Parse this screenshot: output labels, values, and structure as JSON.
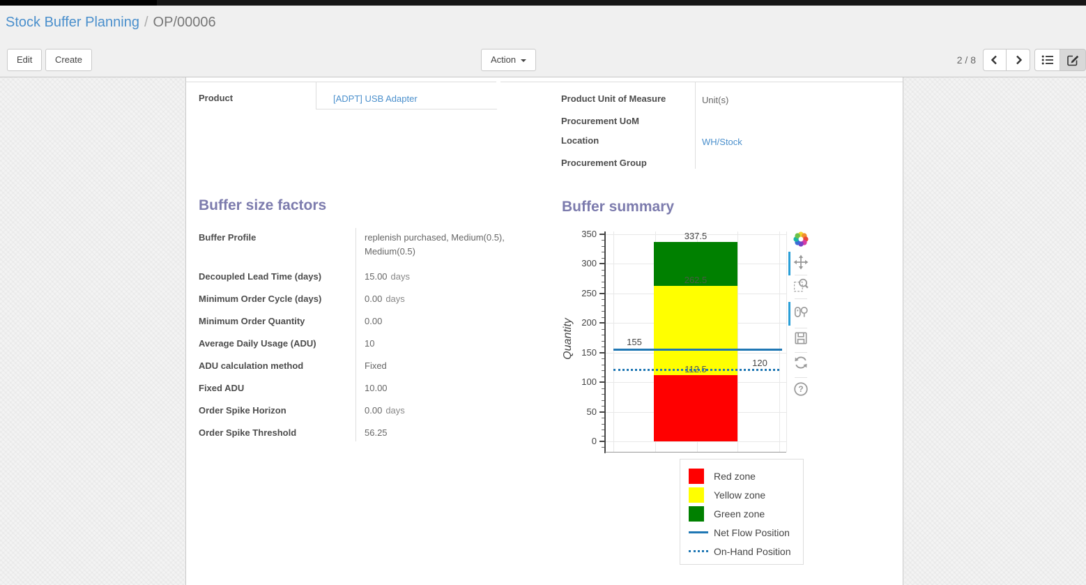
{
  "breadcrumb": {
    "parent": "Stock Buffer Planning",
    "separator": "/",
    "current": "OP/00006"
  },
  "toolbar": {
    "edit_label": "Edit",
    "create_label": "Create",
    "action_label": "Action"
  },
  "pager": {
    "value": "2 / 8"
  },
  "view_switcher": {
    "views": [
      "list",
      "form"
    ],
    "active": "form"
  },
  "form": {
    "left_fields": [
      {
        "label": "Product",
        "value": "[ADPT] USB Adapter",
        "link": true
      }
    ],
    "right_fields": [
      {
        "label": "Product Unit of Measure",
        "value": "Unit(s)",
        "link": false
      },
      {
        "label": "Procurement UoM",
        "value": "",
        "link": false
      },
      {
        "label": "Location",
        "value": "WH/Stock",
        "link": true
      },
      {
        "label": "Procurement Group",
        "value": "",
        "link": false
      }
    ],
    "buffer_factors": {
      "title": "Buffer size factors",
      "rows": [
        {
          "label": "Buffer Profile",
          "value": "replenish purchased, Medium(0.5), Medium(0.5)",
          "suffix": "",
          "link": true
        },
        {
          "label": "Decoupled Lead Time (days)",
          "value": "15.00",
          "suffix": "days",
          "link": false
        },
        {
          "label": "Minimum Order Cycle (days)",
          "value": "0.00",
          "suffix": "days",
          "link": false
        },
        {
          "label": "Minimum Order Quantity",
          "value": "0.00",
          "suffix": "",
          "link": false
        },
        {
          "label": "Average Daily Usage (ADU)",
          "value": "10",
          "suffix": "",
          "link": false
        },
        {
          "label": "ADU calculation method",
          "value": "Fixed",
          "suffix": "",
          "link": true
        },
        {
          "label": "Fixed ADU",
          "value": "10.00",
          "suffix": "",
          "link": false
        },
        {
          "label": "Order Spike Horizon",
          "value": "0.00",
          "suffix": "days",
          "link": false
        },
        {
          "label": "Order Spike Threshold",
          "value": "56.25",
          "suffix": "",
          "link": false
        }
      ]
    },
    "buffer_summary": {
      "title": "Buffer summary"
    }
  },
  "chart_data": {
    "type": "bar",
    "title": "",
    "xlabel": "",
    "ylabel": "Quantity",
    "ylim": [
      0,
      350
    ],
    "ytick_step": 50,
    "grid": true,
    "legend_position": "bottom-right",
    "zones": [
      {
        "name": "Red zone",
        "from": 0,
        "to": 112.5,
        "color": "#ff0000"
      },
      {
        "name": "Yellow zone",
        "from": 112.5,
        "to": 262.5,
        "color": "#ffff00"
      },
      {
        "name": "Green zone",
        "from": 262.5,
        "to": 337.5,
        "color": "#008000"
      }
    ],
    "labels": [
      {
        "text": "337.5",
        "value": 337.5,
        "color": "#444444"
      },
      {
        "text": "262.5",
        "value": 262.5,
        "color": "#4a5a45"
      },
      {
        "text": "112.5",
        "value": 112.5,
        "color": "#555555"
      }
    ],
    "lines": [
      {
        "name": "Net Flow Position",
        "value": 155,
        "style": "solid",
        "color": "#1f77b4",
        "label": "155",
        "label_side": "left"
      },
      {
        "name": "On-Hand Position",
        "value": 120,
        "style": "dotted",
        "color": "#1f77b4",
        "label": "120",
        "label_side": "right"
      }
    ],
    "legend": [
      "Red zone",
      "Yellow zone",
      "Green zone",
      "Net Flow Position",
      "On-Hand Position"
    ]
  },
  "modebar": {
    "icons": [
      "plotly-logo",
      "pan",
      "box-zoom",
      "compare-on-hover",
      "save-snapshot",
      "reset-axes",
      "help"
    ],
    "help_glyph": "?"
  }
}
